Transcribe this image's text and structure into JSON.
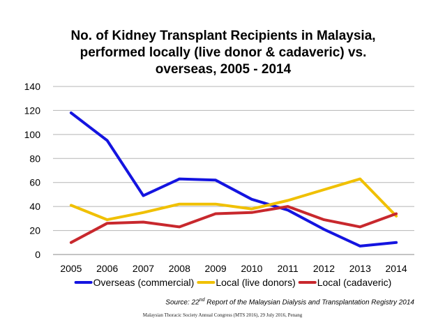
{
  "title_lines": [
    "No. of Kidney Transplant Recipients in Malaysia,",
    "performed locally (live donor & cadaveric) vs.",
    "overseas, 2005 - 2014"
  ],
  "chart_data": {
    "type": "line",
    "title": "No. of Kidney Transplant Recipients in Malaysia, performed locally (live donor & cadaveric) vs. overseas, 2005 - 2014",
    "x": [
      "2005",
      "2006",
      "2007",
      "2008",
      "2009",
      "2010",
      "2011",
      "2012",
      "2013",
      "2014"
    ],
    "yticks": [
      "0",
      "20",
      "40",
      "60",
      "80",
      "100",
      "120",
      "140"
    ],
    "ylim": [
      0,
      140
    ],
    "grid": true,
    "legend_position": "bottom",
    "series": [
      {
        "name": "Overseas (commercial)",
        "color": "#1414e0",
        "values": [
          118,
          95,
          49,
          63,
          62,
          46,
          37,
          21,
          7,
          10
        ]
      },
      {
        "name": "Local (live donors)",
        "color": "#f0c000",
        "values": [
          41,
          29,
          35,
          42,
          42,
          38,
          45,
          54,
          63,
          32
        ]
      },
      {
        "name": "Local (cadaveric)",
        "color": "#c8282d",
        "values": [
          10,
          26,
          27,
          23,
          34,
          35,
          40,
          29,
          23,
          34
        ]
      }
    ]
  },
  "source": {
    "prefix": "Source: 22",
    "sup": "nd",
    "suffix": "  Report of the Malaysian Dialysis and Transplantation Registry 2014"
  },
  "footer": "Malaysian Thoracic Society Annual Congress (MTS 2016), 29 July 2016, Penang"
}
